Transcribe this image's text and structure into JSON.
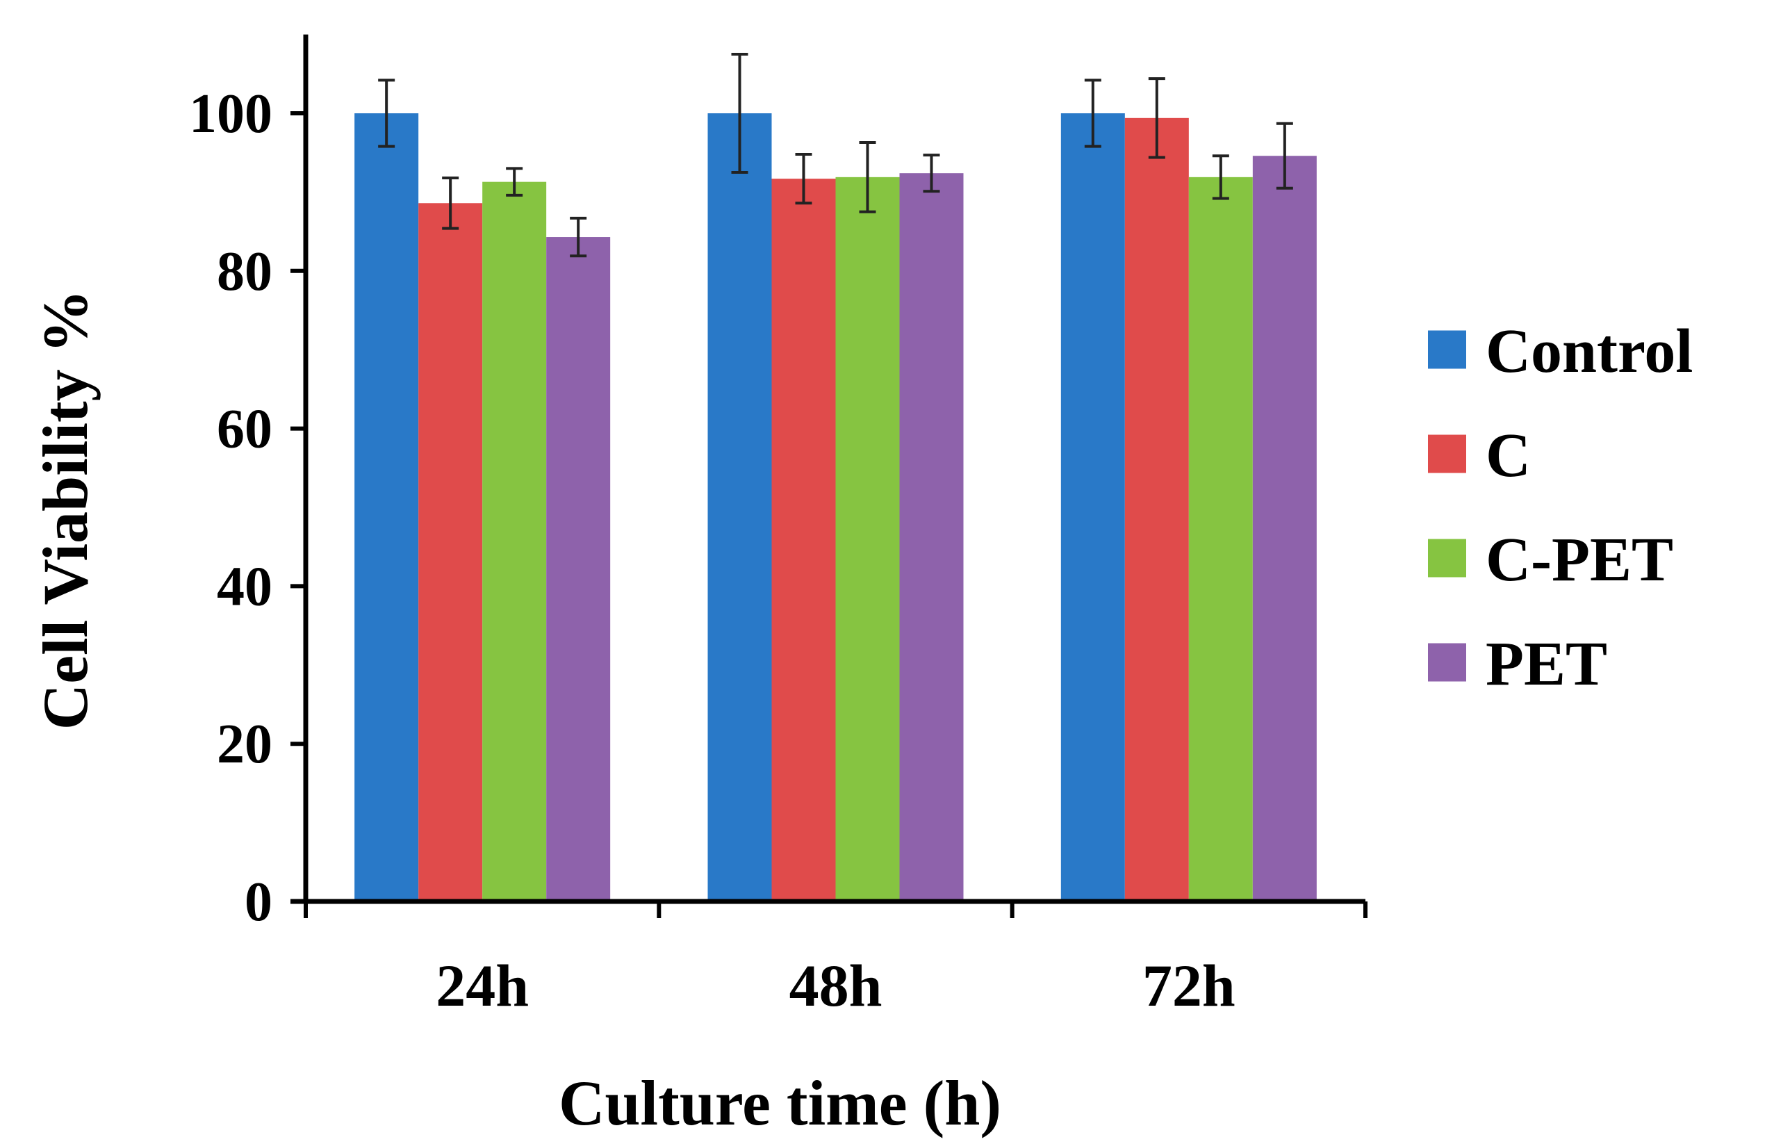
{
  "chart_data": {
    "type": "bar",
    "title": "",
    "xlabel": "Culture time (h)",
    "ylabel": "Cell Viability %",
    "categories": [
      "24h",
      "48h",
      "72h"
    ],
    "ylim": [
      0,
      110
    ],
    "yticks": [
      0,
      20,
      40,
      60,
      80,
      100
    ],
    "grid": false,
    "legend_position": "right",
    "series": [
      {
        "name": "Control",
        "color": "#2979C8",
        "values": [
          100,
          100,
          100
        ],
        "errors": [
          4.2,
          7.5,
          4.2
        ]
      },
      {
        "name": "C",
        "color": "#E04B4B",
        "values": [
          88.6,
          91.7,
          99.4
        ],
        "errors": [
          3.2,
          3.1,
          5.0
        ]
      },
      {
        "name": "C-PET",
        "color": "#86C441",
        "values": [
          91.3,
          91.9,
          91.9
        ],
        "errors": [
          1.7,
          4.4,
          2.7
        ]
      },
      {
        "name": "PET",
        "color": "#8E62AB",
        "values": [
          84.3,
          92.4,
          94.6
        ],
        "errors": [
          2.4,
          2.3,
          4.1
        ]
      }
    ]
  }
}
